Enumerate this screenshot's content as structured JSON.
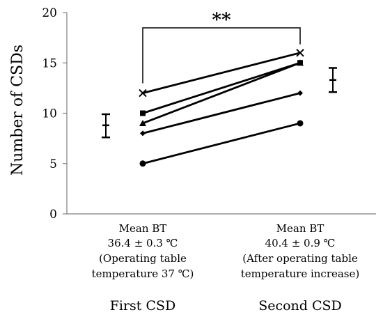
{
  "chart_data": {
    "type": "line",
    "title": "",
    "ylabel": "Number of CSDs",
    "ylim": [
      0,
      20
    ],
    "yticks": [
      0,
      5,
      10,
      15,
      20
    ],
    "grid": false,
    "categories": [
      {
        "label": "First CSD",
        "condition_lines": [
          "Mean BT",
          "36.4 ± 0.3 ℃",
          "(Operating table",
          "temperature 37 ℃)"
        ]
      },
      {
        "label": "Second CSD",
        "condition_lines": [
          "Mean BT",
          "40.4 ± 0.9 ℃",
          "(After operating table",
          "temperature increase)"
        ]
      }
    ],
    "series": [
      {
        "marker": "x",
        "values": [
          12,
          16
        ]
      },
      {
        "marker": "square",
        "values": [
          10,
          15
        ]
      },
      {
        "marker": "triangle",
        "values": [
          9,
          15
        ]
      },
      {
        "marker": "diamond",
        "values": [
          8,
          12
        ]
      },
      {
        "marker": "circle",
        "values": [
          5,
          9
        ]
      }
    ],
    "mean_error": [
      {
        "mean": 8.8,
        "low": 7.6,
        "high": 9.9
      },
      {
        "mean": 13.3,
        "low": 12.1,
        "high": 14.5
      }
    ],
    "significance": {
      "text": "**"
    },
    "colors": {
      "ink": "#000000",
      "axis": "#7f7f7f"
    }
  }
}
